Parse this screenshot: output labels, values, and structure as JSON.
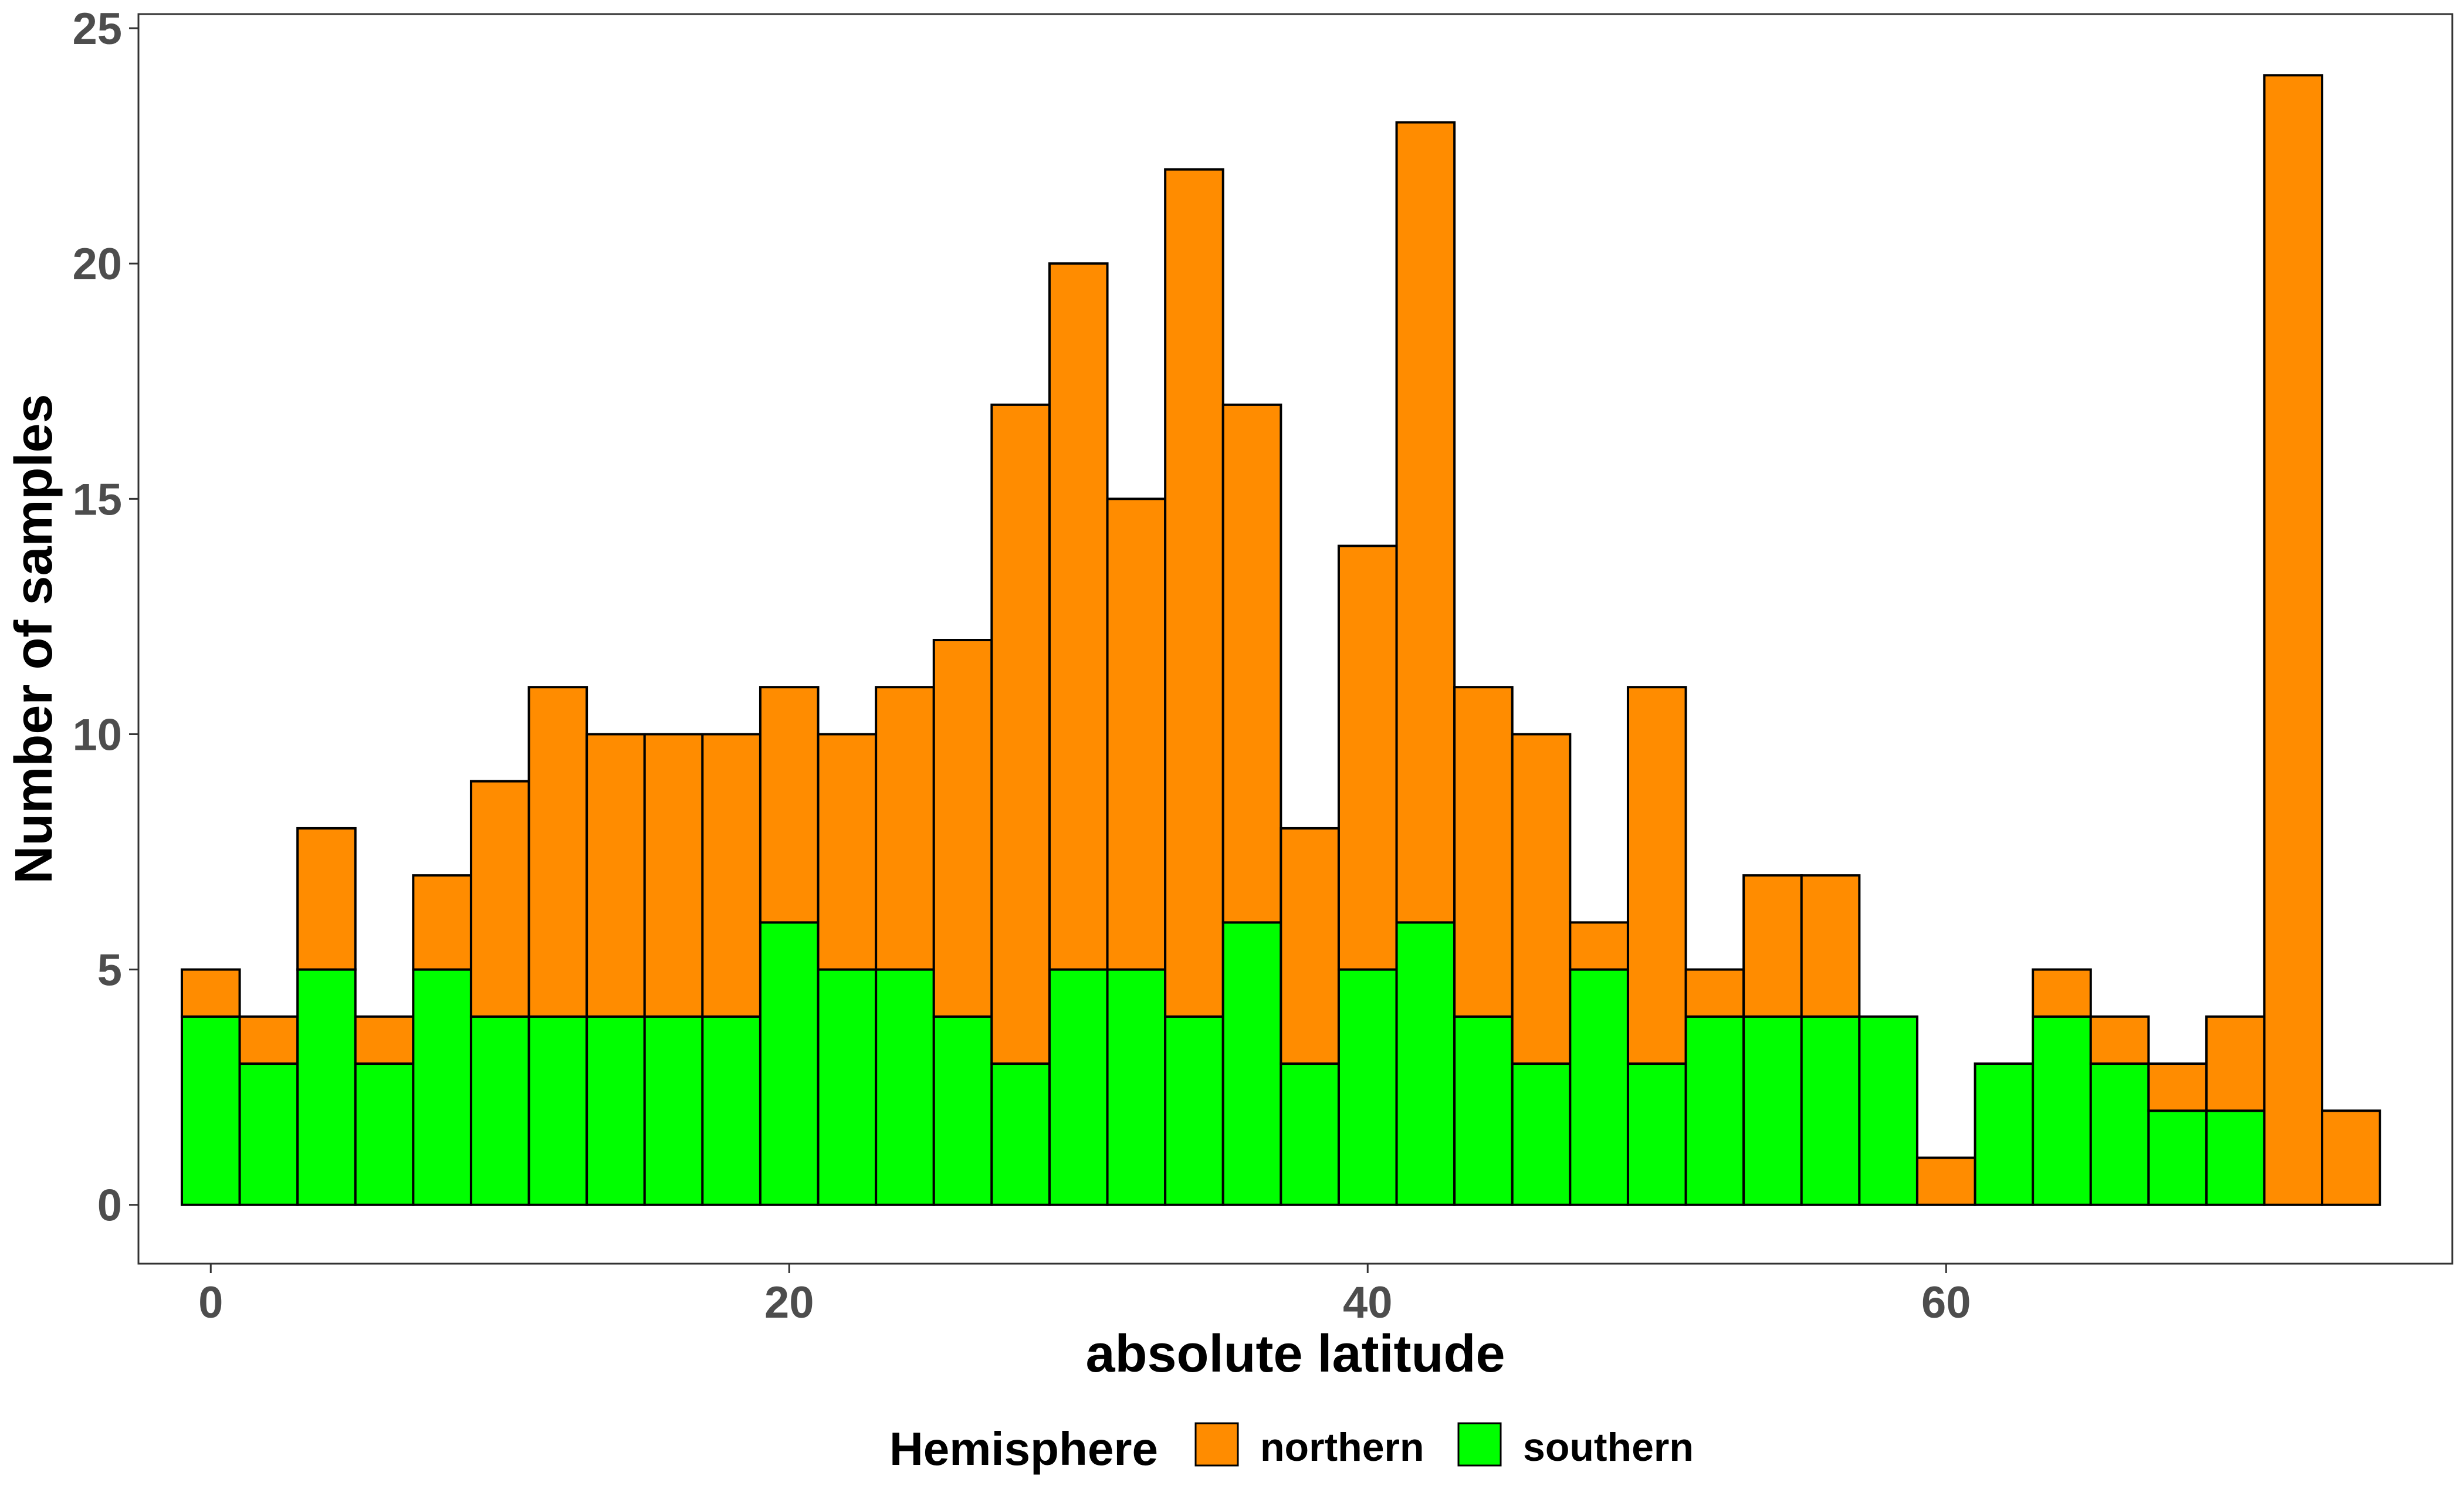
{
  "chart_data": {
    "type": "bar",
    "stacked": true,
    "xlabel": "absolute latitude",
    "ylabel": "Number of samples",
    "xlim": [
      -2.5,
      77.5
    ],
    "ylim": [
      -1.25,
      25.3
    ],
    "x_ticks": [
      0,
      20,
      40,
      60
    ],
    "y_ticks": [
      0,
      5,
      10,
      15,
      20,
      25
    ],
    "x_tick_labels": [
      "0",
      "20",
      "40",
      "60"
    ],
    "y_tick_labels": [
      "0",
      "5",
      "10",
      "15",
      "20",
      "25"
    ],
    "bin_width": 2,
    "bin_centers": [
      0,
      2,
      4,
      6,
      8,
      10,
      12,
      14,
      16,
      18,
      20,
      22,
      24,
      26,
      28,
      30,
      32,
      34,
      36,
      38,
      40,
      42,
      44,
      46,
      48,
      50,
      52,
      54,
      56,
      58,
      60,
      62,
      64,
      66,
      68,
      70,
      72,
      74
    ],
    "series": [
      {
        "name": "southern",
        "color": "#00ff00",
        "values": [
          4,
          3,
          5,
          3,
          5,
          4,
          4,
          4,
          4,
          4,
          6,
          5,
          5,
          4,
          3,
          5,
          5,
          4,
          6,
          3,
          5,
          6,
          4,
          3,
          5,
          3,
          4,
          4,
          4,
          4,
          0,
          3,
          4,
          3,
          2,
          2,
          0,
          0
        ]
      },
      {
        "name": "northern",
        "color": "#ff8c00",
        "values": [
          1,
          1,
          3,
          1,
          2,
          5,
          7,
          6,
          6,
          6,
          5,
          5,
          6,
          8,
          14,
          15,
          10,
          18,
          11,
          5,
          9,
          17,
          7,
          7,
          1,
          8,
          1,
          3,
          3,
          0,
          1,
          0,
          1,
          1,
          1,
          2,
          24,
          2
        ]
      }
    ],
    "stack_order": [
      "southern",
      "northern"
    ],
    "grid": false,
    "legend": {
      "title": "Hemisphere",
      "position": "bottom",
      "entries": [
        "northern",
        "southern"
      ]
    }
  }
}
